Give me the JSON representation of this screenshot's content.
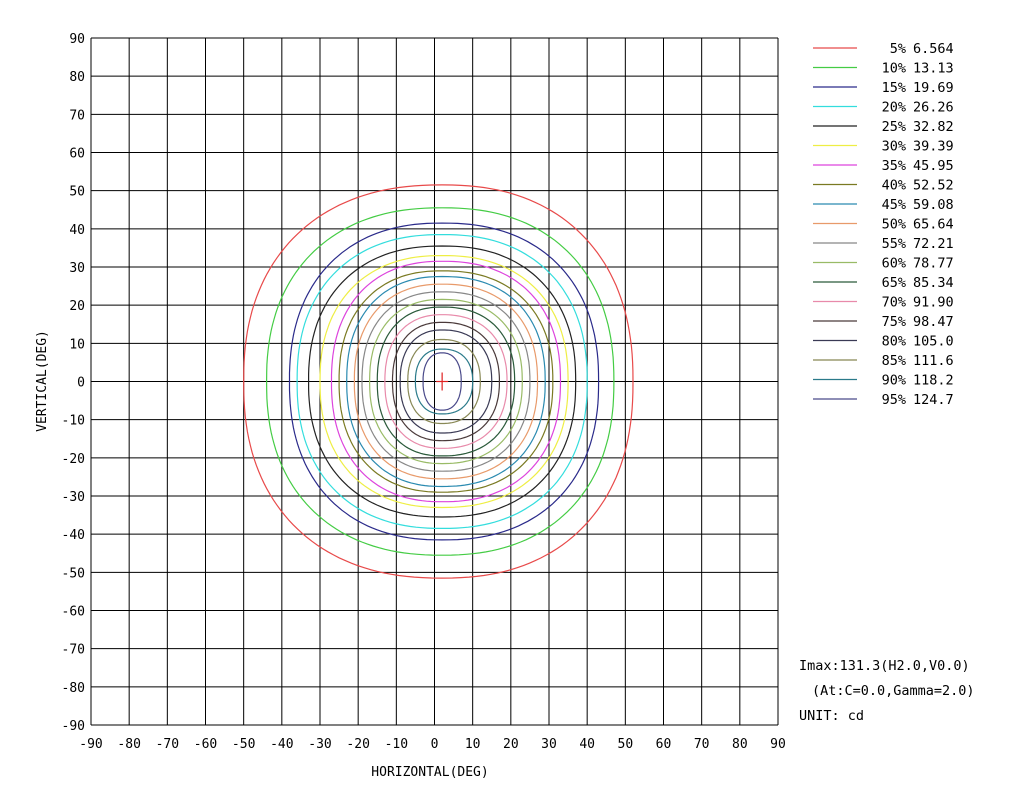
{
  "chart_data": {
    "type": "isocandela-contour",
    "xlabel": "HORIZONTAL(DEG)",
    "ylabel": "VERTICAL(DEG)",
    "xlim": [
      -90,
      90
    ],
    "ylim": [
      -90,
      90
    ],
    "x_ticks": [
      -90,
      -80,
      -70,
      -60,
      -50,
      -40,
      -30,
      -20,
      -10,
      0,
      10,
      20,
      30,
      40,
      50,
      60,
      70,
      80,
      90
    ],
    "y_ticks": [
      90,
      80,
      70,
      60,
      50,
      40,
      30,
      20,
      10,
      0,
      -10,
      -20,
      -30,
      -40,
      -50,
      -60,
      -70,
      -80,
      -90
    ],
    "grid": true,
    "legend_position": "right",
    "center_marker": {
      "h": 2,
      "v": 0
    },
    "contours": [
      {
        "percent": "5%",
        "value": "6.564",
        "color": "#e84a4a",
        "rh_pos": 50,
        "rh_neg": 52,
        "rv_pos": 51.5,
        "rv_neg": 51.5
      },
      {
        "percent": "10%",
        "value": "13.13",
        "color": "#44cc44",
        "rh_pos": 45,
        "rh_neg": 46,
        "rv_pos": 45.5,
        "rv_neg": 45.5
      },
      {
        "percent": "15%",
        "value": "19.69",
        "color": "#2a2a8a",
        "rh_pos": 41,
        "rh_neg": 40,
        "rv_pos": 41.5,
        "rv_neg": 41.5
      },
      {
        "percent": "20%",
        "value": "26.26",
        "color": "#33dddd",
        "rh_pos": 38,
        "rh_neg": 38,
        "rv_pos": 38.5,
        "rv_neg": 38.5
      },
      {
        "percent": "25%",
        "value": "32.82",
        "color": "#222222",
        "rh_pos": 35,
        "rh_neg": 35,
        "rv_pos": 35.5,
        "rv_neg": 35.5
      },
      {
        "percent": "30%",
        "value": "39.39",
        "color": "#eeee44",
        "rh_pos": 33,
        "rh_neg": 32,
        "rv_pos": 33,
        "rv_neg": 33
      },
      {
        "percent": "35%",
        "value": "45.95",
        "color": "#dd44dd",
        "rh_pos": 31,
        "rh_neg": 29,
        "rv_pos": 31.5,
        "rv_neg": 31.5
      },
      {
        "percent": "40%",
        "value": "52.52",
        "color": "#7a7a22",
        "rh_pos": 29,
        "rh_neg": 27,
        "rv_pos": 29,
        "rv_neg": 29
      },
      {
        "percent": "45%",
        "value": "59.08",
        "color": "#2a8ab0",
        "rh_pos": 27,
        "rh_neg": 25,
        "rv_pos": 27.5,
        "rv_neg": 27.5
      },
      {
        "percent": "50%",
        "value": "65.64",
        "color": "#e89a6a",
        "rh_pos": 25,
        "rh_neg": 23,
        "rv_pos": 25.5,
        "rv_neg": 25.5
      },
      {
        "percent": "55%",
        "value": "72.21",
        "color": "#888888",
        "rh_pos": 23,
        "rh_neg": 21,
        "rv_pos": 23.5,
        "rv_neg": 23.5
      },
      {
        "percent": "60%",
        "value": "78.77",
        "color": "#99bb66",
        "rh_pos": 21,
        "rh_neg": 19,
        "rv_pos": 21.5,
        "rv_neg": 21.5
      },
      {
        "percent": "65%",
        "value": "85.34",
        "color": "#2a5a3a",
        "rh_pos": 19,
        "rh_neg": 17,
        "rv_pos": 19.5,
        "rv_neg": 19.5
      },
      {
        "percent": "70%",
        "value": "91.90",
        "color": "#e88aaa",
        "rh_pos": 17,
        "rh_neg": 15,
        "rv_pos": 17.5,
        "rv_neg": 17.5
      },
      {
        "percent": "75%",
        "value": "98.47",
        "color": "#4a3a3a",
        "rh_pos": 15,
        "rh_neg": 13,
        "rv_pos": 15.5,
        "rv_neg": 15.5
      },
      {
        "percent": "80%",
        "value": "105.0",
        "color": "#3a3a55",
        "rh_pos": 13,
        "rh_neg": 11,
        "rv_pos": 13.5,
        "rv_neg": 13.5
      },
      {
        "percent": "85%",
        "value": "111.6",
        "color": "#888855",
        "rh_pos": 10,
        "rh_neg": 9,
        "rv_pos": 11,
        "rv_neg": 11
      },
      {
        "percent": "90%",
        "value": "118.2",
        "color": "#2a7a8a",
        "rh_pos": 8,
        "rh_neg": 7,
        "rv_pos": 8.5,
        "rv_neg": 8.5
      },
      {
        "percent": "95%",
        "value": "124.7",
        "color": "#4a4a8a",
        "rh_pos": 5,
        "rh_neg": 5,
        "rv_pos": 7.5,
        "rv_neg": 7.5
      }
    ],
    "info": {
      "imax": "Imax:131.3(H2.0,V0.0)",
      "at": "(At:C=0.0,Gamma=2.0)",
      "unit": "UNIT: cd"
    }
  }
}
